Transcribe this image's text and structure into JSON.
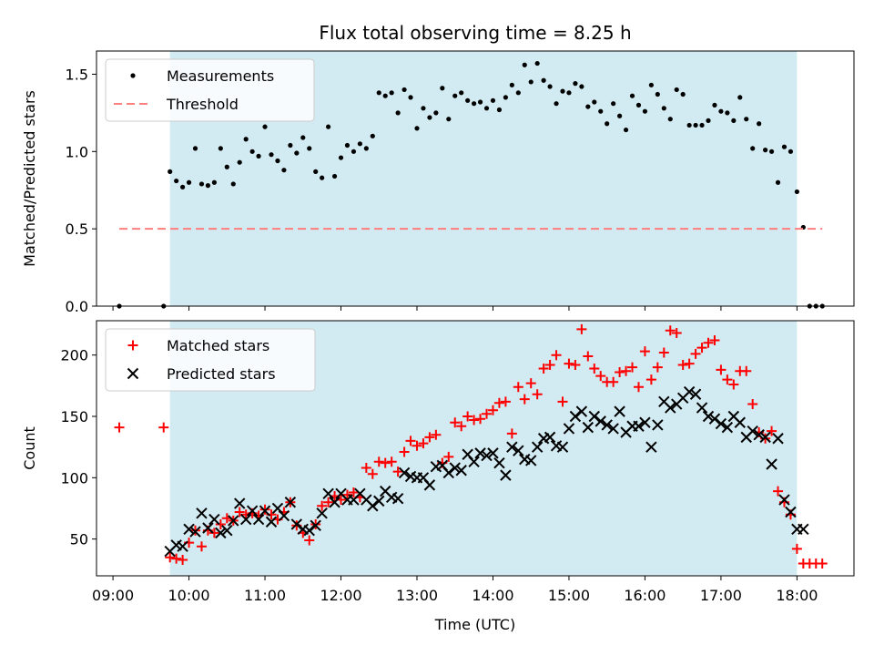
{
  "chart_data": {
    "type": "scatter",
    "title": "Flux total observing time = 8.25 h",
    "xlabel": "Time (UTC)",
    "x_ticks": [
      "09:00",
      "10:00",
      "11:00",
      "12:00",
      "13:00",
      "14:00",
      "15:00",
      "16:00",
      "17:00",
      "18:00"
    ],
    "shaded_region": {
      "start": "09:45",
      "end": "18:00",
      "color": "#add8e6"
    },
    "panels": [
      {
        "ylabel": "Matched/Predicted stars",
        "ylim": [
          0,
          1.65
        ],
        "yticks": [
          "0.0",
          "0.5",
          "1.0",
          "1.5"
        ],
        "legend_position": "top-left",
        "series": [
          {
            "name": "Measurements",
            "marker": "dot",
            "color": "#000000",
            "x": [
              "09:05",
              "09:40",
              "09:45",
              "09:50",
              "09:55",
              "10:00",
              "10:05",
              "10:10",
              "10:15",
              "10:20",
              "10:25",
              "10:30",
              "10:35",
              "10:40",
              "10:45",
              "10:50",
              "10:55",
              "11:00",
              "11:05",
              "11:10",
              "11:15",
              "11:20",
              "11:25",
              "11:30",
              "11:35",
              "11:40",
              "11:45",
              "11:50",
              "11:55",
              "12:00",
              "12:05",
              "12:10",
              "12:15",
              "12:20",
              "12:25",
              "12:30",
              "12:35",
              "12:40",
              "12:45",
              "12:50",
              "12:55",
              "13:00",
              "13:05",
              "13:10",
              "13:15",
              "13:20",
              "13:25",
              "13:30",
              "13:35",
              "13:40",
              "13:45",
              "13:50",
              "13:55",
              "14:00",
              "14:05",
              "14:10",
              "14:15",
              "14:20",
              "14:25",
              "14:30",
              "14:35",
              "14:40",
              "14:45",
              "14:50",
              "14:55",
              "15:00",
              "15:05",
              "15:10",
              "15:15",
              "15:20",
              "15:25",
              "15:30",
              "15:35",
              "15:40",
              "15:45",
              "15:50",
              "15:55",
              "16:00",
              "16:05",
              "16:10",
              "16:15",
              "16:20",
              "16:25",
              "16:30",
              "16:35",
              "16:40",
              "16:45",
              "16:50",
              "16:55",
              "17:00",
              "17:05",
              "17:10",
              "17:15",
              "17:20",
              "17:25",
              "17:30",
              "17:35",
              "17:40",
              "17:45",
              "17:50",
              "17:55",
              "18:00",
              "18:05",
              "18:10",
              "18:15",
              "18:20"
            ],
            "y": [
              0.0,
              0.0,
              0.87,
              0.81,
              0.77,
              0.8,
              1.02,
              0.79,
              0.78,
              0.8,
              1.02,
              0.9,
              0.79,
              0.93,
              1.08,
              1.0,
              0.97,
              1.16,
              0.98,
              0.94,
              0.88,
              1.04,
              0.99,
              1.09,
              1.02,
              0.87,
              0.83,
              1.16,
              0.84,
              0.96,
              1.04,
              1.0,
              1.05,
              1.02,
              1.1,
              1.38,
              1.36,
              1.38,
              1.25,
              1.4,
              1.35,
              1.15,
              1.28,
              1.22,
              1.25,
              1.41,
              1.21,
              1.36,
              1.38,
              1.33,
              1.31,
              1.32,
              1.28,
              1.33,
              1.27,
              1.35,
              1.43,
              1.38,
              1.56,
              1.45,
              1.57,
              1.46,
              1.42,
              1.31,
              1.39,
              1.38,
              1.44,
              1.42,
              1.29,
              1.32,
              1.26,
              1.18,
              1.31,
              1.23,
              1.14,
              1.36,
              1.3,
              1.26,
              1.43,
              1.37,
              1.28,
              1.21,
              1.4,
              1.37,
              1.17,
              1.17,
              1.17,
              1.2,
              1.3,
              1.26,
              1.25,
              1.2,
              1.35,
              1.21,
              1.02,
              1.18,
              1.01,
              1.0,
              0.8,
              1.03,
              1.0,
              0.74,
              0.51,
              0.0,
              0.0,
              0.0
            ]
          },
          {
            "name": "Threshold",
            "marker": "dashed-line",
            "color": "#ff7f7f",
            "x": [
              "09:05",
              "18:20"
            ],
            "y": [
              0.5,
              0.5
            ]
          }
        ]
      },
      {
        "ylabel": "Count",
        "ylim": [
          20,
          228
        ],
        "yticks": [
          "50",
          "100",
          "150",
          "200"
        ],
        "legend_position": "top-left",
        "series": [
          {
            "name": "Matched stars",
            "marker": "plus",
            "color": "#ff0000",
            "x": [
              "09:05",
              "09:40",
              "09:45",
              "09:50",
              "09:55",
              "10:00",
              "10:05",
              "10:10",
              "10:15",
              "10:20",
              "10:25",
              "10:30",
              "10:35",
              "10:40",
              "10:45",
              "10:50",
              "10:55",
              "11:00",
              "11:05",
              "11:10",
              "11:15",
              "11:20",
              "11:25",
              "11:30",
              "11:35",
              "11:40",
              "11:45",
              "11:50",
              "11:55",
              "12:00",
              "12:05",
              "12:10",
              "12:15",
              "12:20",
              "12:25",
              "12:30",
              "12:35",
              "12:40",
              "12:45",
              "12:50",
              "12:55",
              "13:00",
              "13:05",
              "13:10",
              "13:15",
              "13:20",
              "13:25",
              "13:30",
              "13:35",
              "13:40",
              "13:45",
              "13:50",
              "13:55",
              "14:00",
              "14:05",
              "14:10",
              "14:15",
              "14:20",
              "14:25",
              "14:30",
              "14:35",
              "14:40",
              "14:45",
              "14:50",
              "14:55",
              "15:00",
              "15:05",
              "15:10",
              "15:15",
              "15:20",
              "15:25",
              "15:30",
              "15:35",
              "15:40",
              "15:45",
              "15:50",
              "15:55",
              "16:00",
              "16:05",
              "16:10",
              "16:15",
              "16:20",
              "16:25",
              "16:30",
              "16:35",
              "16:40",
              "16:45",
              "16:50",
              "16:55",
              "17:00",
              "17:05",
              "17:10",
              "17:15",
              "17:20",
              "17:25",
              "17:30",
              "17:35",
              "17:40",
              "17:45",
              "17:50",
              "17:55",
              "18:00",
              "18:05",
              "18:10",
              "18:15",
              "18:20"
            ],
            "y": [
              141,
              141,
              35,
              34,
              33,
              47,
              57,
              44,
              57,
              55,
              62,
              67,
              65,
              72,
              70,
              71,
              69,
              74,
              70,
              66,
              72,
              80,
              61,
              55,
              49,
              62,
              77,
              80,
              85,
              82,
              86,
              88,
              84,
              108,
              103,
              113,
              112,
              113,
              105,
              121,
              130,
              126,
              128,
              133,
              135,
              112,
              117,
              145,
              142,
              150,
              147,
              148,
              152,
              155,
              161,
              162,
              136,
              174,
              164,
              177,
              168,
              189,
              192,
              200,
              162,
              193,
              192,
              221,
              199,
              189,
              183,
              178,
              178,
              186,
              187,
              190,
              174,
              203,
              180,
              190,
              202,
              220,
              218,
              192,
              193,
              201,
              206,
              210,
              212,
              188,
              180,
              176,
              187,
              187,
              160,
              137,
              132,
              138,
              89,
              80,
              70,
              42,
              30,
              30,
              30,
              30
            ]
          },
          {
            "name": "Predicted stars",
            "marker": "x",
            "color": "#000000",
            "x": [
              "09:45",
              "09:50",
              "09:55",
              "10:00",
              "10:05",
              "10:10",
              "10:15",
              "10:20",
              "10:25",
              "10:30",
              "10:35",
              "10:40",
              "10:45",
              "10:50",
              "10:55",
              "11:00",
              "11:05",
              "11:10",
              "11:15",
              "11:20",
              "11:25",
              "11:30",
              "11:35",
              "11:40",
              "11:45",
              "11:50",
              "11:55",
              "12:00",
              "12:05",
              "12:10",
              "12:15",
              "12:20",
              "12:25",
              "12:30",
              "12:35",
              "12:40",
              "12:45",
              "12:50",
              "12:55",
              "13:00",
              "13:05",
              "13:10",
              "13:15",
              "13:20",
              "13:25",
              "13:30",
              "13:35",
              "13:40",
              "13:45",
              "13:50",
              "13:55",
              "14:00",
              "14:05",
              "14:10",
              "14:15",
              "14:20",
              "14:25",
              "14:30",
              "14:35",
              "14:40",
              "14:45",
              "14:50",
              "14:55",
              "15:00",
              "15:05",
              "15:10",
              "15:15",
              "15:20",
              "15:25",
              "15:30",
              "15:35",
              "15:40",
              "15:45",
              "15:50",
              "15:55",
              "16:00",
              "16:05",
              "16:10",
              "16:15",
              "16:20",
              "16:25",
              "16:30",
              "16:35",
              "16:40",
              "16:45",
              "16:50",
              "16:55",
              "17:00",
              "17:05",
              "17:10",
              "17:15",
              "17:20",
              "17:25",
              "17:30",
              "17:35",
              "17:40",
              "17:45",
              "17:50",
              "17:55",
              "18:00",
              "18:05"
            ],
            "y": [
              40,
              45,
              44,
              58,
              56,
              71,
              59,
              66,
              55,
              57,
              65,
              79,
              66,
              73,
              66,
              73,
              64,
              75,
              69,
              80,
              62,
              58,
              57,
              61,
              71,
              87,
              80,
              87,
              82,
              82,
              87,
              82,
              77,
              81,
              89,
              84,
              83,
              104,
              101,
              100,
              100,
              94,
              109,
              110,
              104,
              108,
              106,
              119,
              113,
              120,
              118,
              120,
              112,
              102,
              125,
              122,
              115,
              114,
              125,
              132,
              133,
              126,
              125,
              140,
              150,
              154,
              141,
              150,
              146,
              143,
              140,
              154,
              137,
              142,
              142,
              145,
              125,
              143,
              162,
              157,
              160,
              165,
              170,
              168,
              157,
              150,
              148,
              144,
              141,
              150,
              145,
              133,
              138,
              135,
              133,
              111,
              132,
              82,
              72,
              58,
              58
            ]
          }
        ]
      }
    ]
  }
}
